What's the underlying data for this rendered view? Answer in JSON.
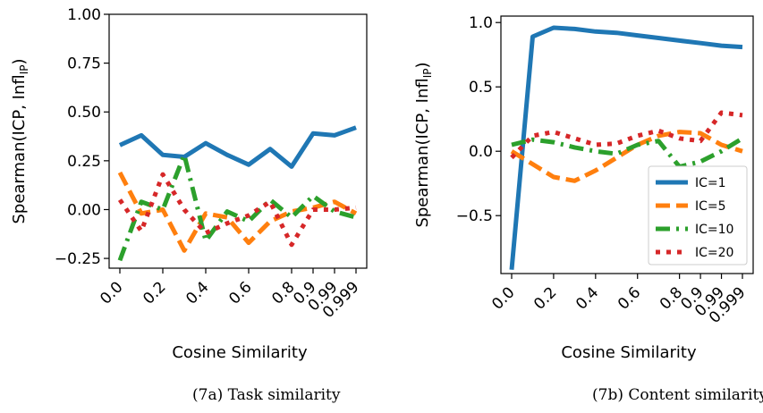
{
  "chart_data": [
    {
      "type": "line",
      "caption": "(7a) Task similarity",
      "xlabel": "Cosine Similarity",
      "ylabel": "Spearman(ICP, Infl",
      "ylabel_sub": "IP",
      "ylabel_close": ")",
      "ylim": [
        -0.3,
        1.0
      ],
      "yticks": [
        "1.00",
        "0.75",
        "0.50",
        "0.25",
        "0.00",
        "−0.25"
      ],
      "ytick_values": [
        1.0,
        0.75,
        0.5,
        0.25,
        0.0,
        -0.25
      ],
      "xticks": [
        "0.0",
        "0.2",
        "0.4",
        "0.6",
        "0.8",
        "0.9",
        "0.99",
        "0.999"
      ],
      "xtick_values": [
        0.0,
        0.2,
        0.4,
        0.6,
        0.8,
        0.9,
        0.99,
        0.999
      ],
      "grid": false,
      "x": [
        0.0,
        0.1,
        0.2,
        0.3,
        0.4,
        0.5,
        0.6,
        0.7,
        0.8,
        0.9,
        0.99,
        0.999
      ],
      "series": [
        {
          "name": "IC=1",
          "color": "#1f77b4",
          "dash": "solid",
          "values": [
            0.33,
            0.38,
            0.28,
            0.27,
            0.34,
            0.28,
            0.23,
            0.31,
            0.22,
            0.39,
            0.38,
            0.42
          ]
        },
        {
          "name": "IC=5",
          "color": "#ff7f0e",
          "dash": "dashed",
          "values": [
            0.19,
            -0.02,
            0.0,
            -0.21,
            -0.02,
            -0.04,
            -0.17,
            -0.06,
            -0.01,
            0.01,
            0.04,
            -0.02
          ]
        },
        {
          "name": "IC=10",
          "color": "#2ca02c",
          "dash": "dashdot",
          "values": [
            -0.26,
            0.04,
            0.0,
            0.28,
            -0.16,
            -0.01,
            -0.06,
            0.05,
            -0.04,
            0.07,
            -0.01,
            -0.04
          ]
        },
        {
          "name": "IC=20",
          "color": "#d62728",
          "dash": "dotted",
          "values": [
            0.05,
            -0.11,
            0.18,
            0.0,
            -0.12,
            -0.07,
            -0.03,
            0.04,
            -0.18,
            0.0,
            0.0,
            0.01
          ]
        }
      ]
    },
    {
      "type": "line",
      "caption": "(7b) Content similarity",
      "xlabel": "Cosine Similarity",
      "ylabel": "Spearman(ICP, Infl",
      "ylabel_sub": "IP",
      "ylabel_close": ")",
      "ylim": [
        -0.95,
        1.05
      ],
      "yticks": [
        "1.0",
        "0.5",
        "0.0",
        "−0.5"
      ],
      "ytick_values": [
        1.0,
        0.5,
        0.0,
        -0.5
      ],
      "xticks": [
        "0.0",
        "0.2",
        "0.4",
        "0.6",
        "0.8",
        "0.9",
        "0.99",
        "0.999"
      ],
      "xtick_values": [
        0.0,
        0.2,
        0.4,
        0.6,
        0.8,
        0.9,
        0.99,
        0.999
      ],
      "grid": false,
      "legend": "lower-right",
      "x": [
        0.0,
        0.1,
        0.2,
        0.3,
        0.4,
        0.5,
        0.6,
        0.7,
        0.8,
        0.9,
        0.99,
        0.999
      ],
      "series": [
        {
          "name": "IC=1",
          "color": "#1f77b4",
          "dash": "solid",
          "values": [
            -0.92,
            0.89,
            0.96,
            0.95,
            0.93,
            0.92,
            0.9,
            0.88,
            0.86,
            0.84,
            0.82,
            0.81
          ]
        },
        {
          "name": "IC=5",
          "color": "#ff7f0e",
          "dash": "dashed",
          "values": [
            0.0,
            -0.1,
            -0.2,
            -0.23,
            -0.15,
            -0.05,
            0.05,
            0.12,
            0.15,
            0.14,
            0.05,
            0.0
          ]
        },
        {
          "name": "IC=10",
          "color": "#2ca02c",
          "dash": "dashdot",
          "values": [
            0.05,
            0.09,
            0.07,
            0.03,
            0.0,
            -0.02,
            0.05,
            0.08,
            -0.12,
            -0.08,
            0.0,
            0.1
          ]
        },
        {
          "name": "IC=20",
          "color": "#d62728",
          "dash": "dotted",
          "values": [
            -0.05,
            0.12,
            0.15,
            0.1,
            0.05,
            0.06,
            0.12,
            0.16,
            0.1,
            0.08,
            0.3,
            0.28
          ]
        }
      ]
    }
  ]
}
